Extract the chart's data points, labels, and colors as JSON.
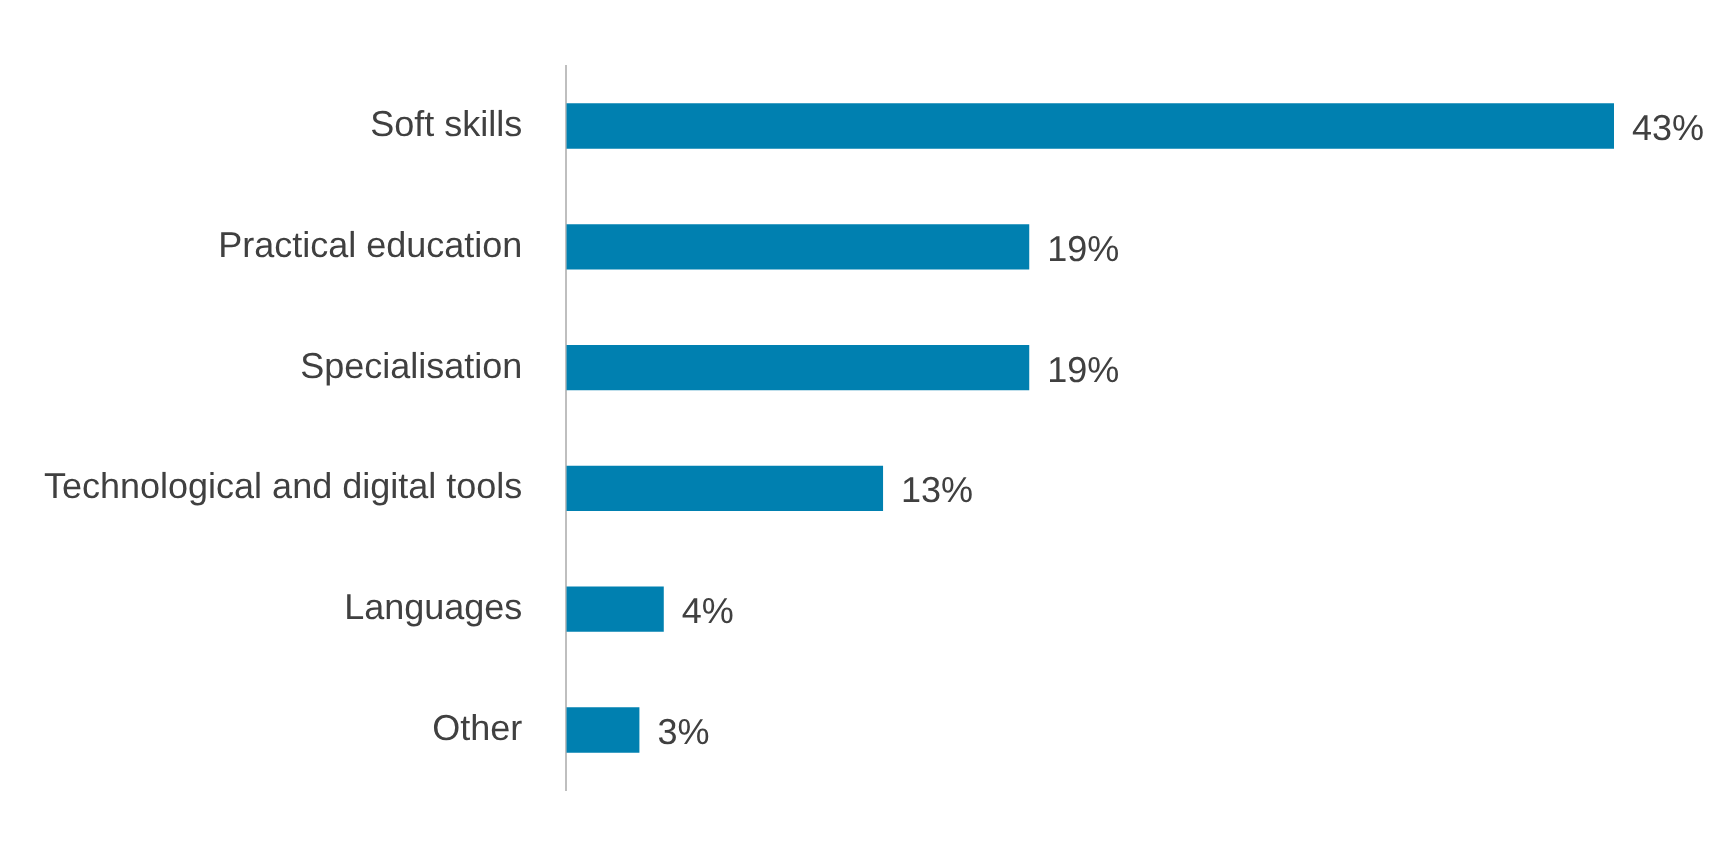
{
  "chart_data": {
    "type": "bar",
    "orientation": "horizontal",
    "categories": [
      "Soft skills",
      "Practical education",
      "Specialisation",
      "Technological and digital tools",
      "Languages",
      "Other"
    ],
    "values": [
      43,
      19,
      19,
      13,
      4,
      3
    ],
    "value_labels": [
      "43%",
      "19%",
      "19%",
      "13%",
      "4%",
      "3%"
    ],
    "color": "#0080b0",
    "legend": false,
    "grid": false
  }
}
